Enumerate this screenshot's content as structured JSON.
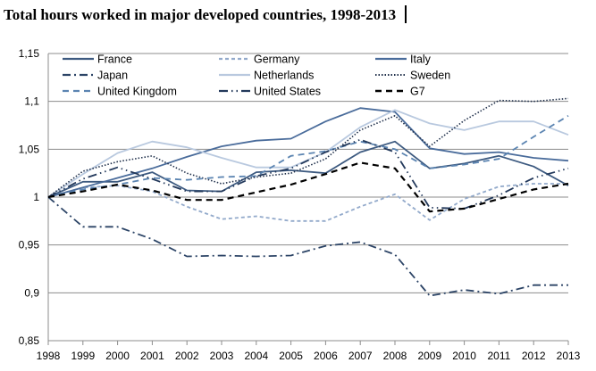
{
  "chart_data": {
    "type": "line",
    "title": "Total hours worked in major developed countries, 1998-2013",
    "xlabel": "",
    "ylabel": "",
    "x": [
      "1998",
      "1999",
      "2000",
      "2001",
      "2002",
      "2003",
      "2004",
      "2005",
      "2006",
      "2007",
      "2008",
      "2009",
      "2010",
      "2011",
      "2012",
      "2013"
    ],
    "ylim": [
      0.85,
      1.15
    ],
    "yticks": [
      0.85,
      0.9,
      0.95,
      1.0,
      1.05,
      1.1,
      1.15
    ],
    "ytick_labels": [
      "0,85",
      "0,9",
      "0,95",
      "1",
      "1,05",
      "1,1",
      "1,15"
    ],
    "grid": "horizontal",
    "legend_position": "top (inside plot, 3 columns)",
    "series": [
      {
        "name": "France",
        "color": "#3d5a80",
        "style": "solid",
        "values": [
          1,
          1.016,
          1.016,
          1.026,
          1.007,
          1.006,
          1.026,
          1.028,
          1.025,
          1.047,
          1.058,
          1.03,
          1.035,
          1.043,
          1.032,
          1.012
        ]
      },
      {
        "name": "Germany",
        "color": "#93aacb",
        "style": "short-dash",
        "values": [
          1,
          1.01,
          1.012,
          1.006,
          0.99,
          0.977,
          0.98,
          0.975,
          0.975,
          0.99,
          1.003,
          0.976,
          0.998,
          1.011,
          1.014,
          1.014
        ]
      },
      {
        "name": "Italy",
        "color": "#4a6c9b",
        "style": "solid",
        "values": [
          1,
          1.01,
          1.02,
          1.03,
          1.042,
          1.053,
          1.059,
          1.061,
          1.079,
          1.093,
          1.089,
          1.051,
          1.045,
          1.047,
          1.041,
          1.038
        ]
      },
      {
        "name": "Japan",
        "color": "#2c4466",
        "style": "dash-dot",
        "values": [
          1,
          0.969,
          0.969,
          0.956,
          0.938,
          0.939,
          0.938,
          0.939,
          0.949,
          0.953,
          0.94,
          0.897,
          0.903,
          0.899,
          0.908,
          0.908
        ]
      },
      {
        "name": "Netherlands",
        "color": "#b9c9df",
        "style": "solid",
        "values": [
          1,
          1.024,
          1.046,
          1.058,
          1.052,
          1.041,
          1.031,
          1.031,
          1.047,
          1.073,
          1.091,
          1.077,
          1.07,
          1.079,
          1.079,
          1.065
        ]
      },
      {
        "name": "Sweden",
        "color": "#1f2f4a",
        "style": "dotted",
        "values": [
          1,
          1.027,
          1.037,
          1.043,
          1.025,
          1.014,
          1.021,
          1.025,
          1.04,
          1.07,
          1.085,
          1.053,
          1.08,
          1.101,
          1.1,
          1.103
        ]
      },
      {
        "name": "United Kingdom",
        "color": "#5b84b1",
        "style": "dash",
        "values": [
          1,
          1.008,
          1.013,
          1.02,
          1.018,
          1.021,
          1.022,
          1.043,
          1.048,
          1.058,
          1.05,
          1.03,
          1.034,
          1.04,
          1.063,
          1.085
        ]
      },
      {
        "name": "United States",
        "color": "#23395b",
        "style": "long-dash-dot-dot",
        "values": [
          1,
          1.019,
          1.031,
          1.019,
          1.006,
          1.006,
          1.022,
          1.03,
          1.047,
          1.06,
          1.047,
          0.989,
          0.988,
          1.002,
          1.02,
          1.03
        ]
      },
      {
        "name": "G7",
        "color": "#000000",
        "style": "dash",
        "values": [
          1,
          1.006,
          1.013,
          1.007,
          0.997,
          0.997,
          1.005,
          1.013,
          1.024,
          1.036,
          1.03,
          0.985,
          0.988,
          0.998,
          1.008,
          1.014
        ]
      }
    ]
  }
}
